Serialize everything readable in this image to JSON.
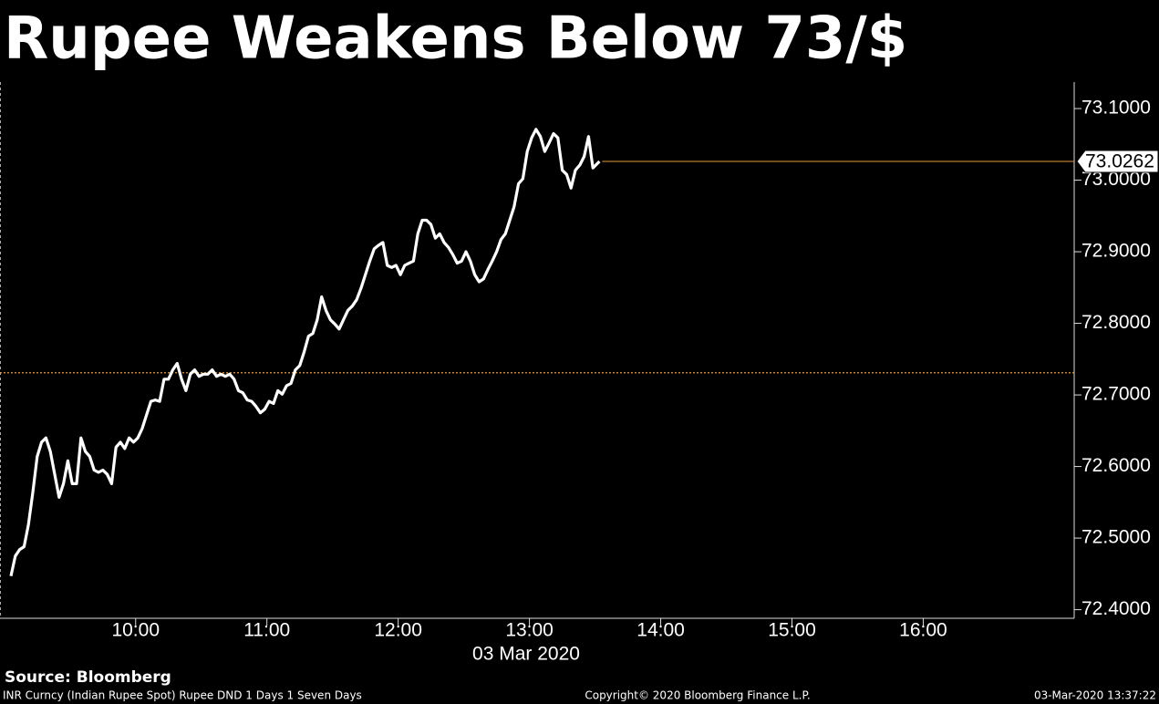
{
  "chart_data": {
    "type": "line",
    "title": "Rupee Weakens Below 73/$",
    "xlabel": "03 Mar 2020",
    "annotations": {
      "source": "Source: Bloomberg",
      "footer_left": "INR Curncy (Indian Rupee Spot) Rupee DND 1 Days 1 Seven Days",
      "footer_center": "Copyright© 2020 Bloomberg Finance L.P.",
      "footer_right": "03-Mar-2020 13:37:22"
    },
    "x": [
      543,
      545,
      547,
      549,
      551,
      553,
      555,
      557,
      559,
      561,
      563,
      565,
      567,
      569,
      571,
      573,
      575,
      577,
      579,
      581,
      583,
      585,
      587,
      589,
      591,
      593,
      595,
      597,
      599,
      601,
      603,
      605,
      607,
      609,
      611,
      613,
      615,
      617,
      619,
      621,
      623,
      625,
      627,
      629,
      631,
      633,
      635,
      637,
      639,
      641,
      643,
      645,
      647,
      649,
      651,
      653,
      655,
      657,
      659,
      661,
      663,
      665,
      667,
      669,
      671,
      673,
      675,
      677,
      679,
      681,
      683,
      685,
      687,
      689,
      691,
      693,
      695,
      697,
      699,
      701,
      703,
      705,
      707,
      709,
      711,
      713,
      715,
      717,
      719,
      721,
      723,
      725,
      727,
      729,
      731,
      733,
      735,
      737,
      739,
      741,
      743,
      745,
      747,
      749,
      751,
      753,
      755,
      757,
      759,
      761,
      763,
      765,
      767,
      769,
      771,
      773,
      775,
      777,
      779,
      781,
      783,
      785,
      787,
      789,
      791,
      793,
      795,
      797,
      799,
      801,
      803,
      805,
      807,
      809,
      812
    ],
    "series": [
      {
        "color": "#ffffff",
        "values": [
          72.447,
          72.475,
          72.484,
          72.488,
          72.519,
          72.564,
          72.614,
          72.634,
          72.64,
          72.621,
          72.589,
          72.557,
          72.576,
          72.608,
          72.576,
          72.576,
          72.64,
          72.621,
          72.614,
          72.595,
          72.592,
          72.595,
          72.589,
          72.576,
          72.627,
          72.634,
          72.625,
          72.64,
          72.634,
          72.64,
          72.653,
          72.672,
          72.691,
          72.693,
          72.691,
          72.722,
          72.722,
          72.735,
          72.744,
          72.722,
          72.706,
          72.729,
          72.735,
          72.726,
          72.729,
          72.729,
          72.735,
          72.726,
          72.729,
          72.726,
          72.729,
          72.722,
          72.706,
          72.703,
          72.693,
          72.691,
          72.684,
          72.675,
          72.68,
          72.691,
          72.688,
          72.706,
          72.701,
          72.713,
          72.716,
          72.735,
          72.741,
          72.76,
          72.782,
          72.786,
          72.805,
          72.837,
          72.818,
          72.805,
          72.799,
          72.792,
          72.805,
          72.818,
          72.824,
          72.833,
          72.849,
          72.868,
          72.887,
          72.904,
          72.909,
          72.913,
          72.881,
          72.878,
          72.881,
          72.868,
          72.881,
          72.884,
          72.887,
          72.925,
          72.944,
          72.944,
          72.938,
          72.919,
          72.925,
          72.913,
          72.906,
          72.896,
          72.884,
          72.887,
          72.9,
          72.887,
          72.868,
          72.858,
          72.862,
          72.875,
          72.887,
          72.9,
          72.917,
          72.925,
          72.944,
          72.963,
          72.995,
          73.002,
          73.04,
          73.059,
          73.071,
          73.061,
          73.04,
          73.052,
          73.065,
          73.059,
          73.014,
          73.008,
          72.989,
          73.014,
          73.021,
          73.033,
          73.061,
          73.017,
          73.0262
        ]
      }
    ],
    "last_value_color": "#e89a3c",
    "reference_line": {
      "value": 72.731,
      "color": "#e89a3c"
    },
    "xlim": [
      538,
      1029
    ],
    "xticks": [
      {
        "value": 600,
        "label": "10:00"
      },
      {
        "value": 660,
        "label": "11:00"
      },
      {
        "value": 720,
        "label": "12:00"
      },
      {
        "value": 780,
        "label": "13:00"
      },
      {
        "value": 840,
        "label": "14:00"
      },
      {
        "value": 900,
        "label": "15:00"
      },
      {
        "value": 960,
        "label": "16:00"
      }
    ],
    "ylim": [
      72.388,
      73.137
    ],
    "yticks": [
      {
        "value": 72.4,
        "label": "72.4000"
      },
      {
        "value": 72.5,
        "label": "72.5000"
      },
      {
        "value": 72.6,
        "label": "72.6000"
      },
      {
        "value": 72.7,
        "label": "72.7000"
      },
      {
        "value": 72.8,
        "label": "72.8000"
      },
      {
        "value": 72.9,
        "label": "72.9000"
      },
      {
        "value": 73.0,
        "label": "73.0000"
      },
      {
        "value": 73.1,
        "label": "73.1000"
      }
    ]
  }
}
